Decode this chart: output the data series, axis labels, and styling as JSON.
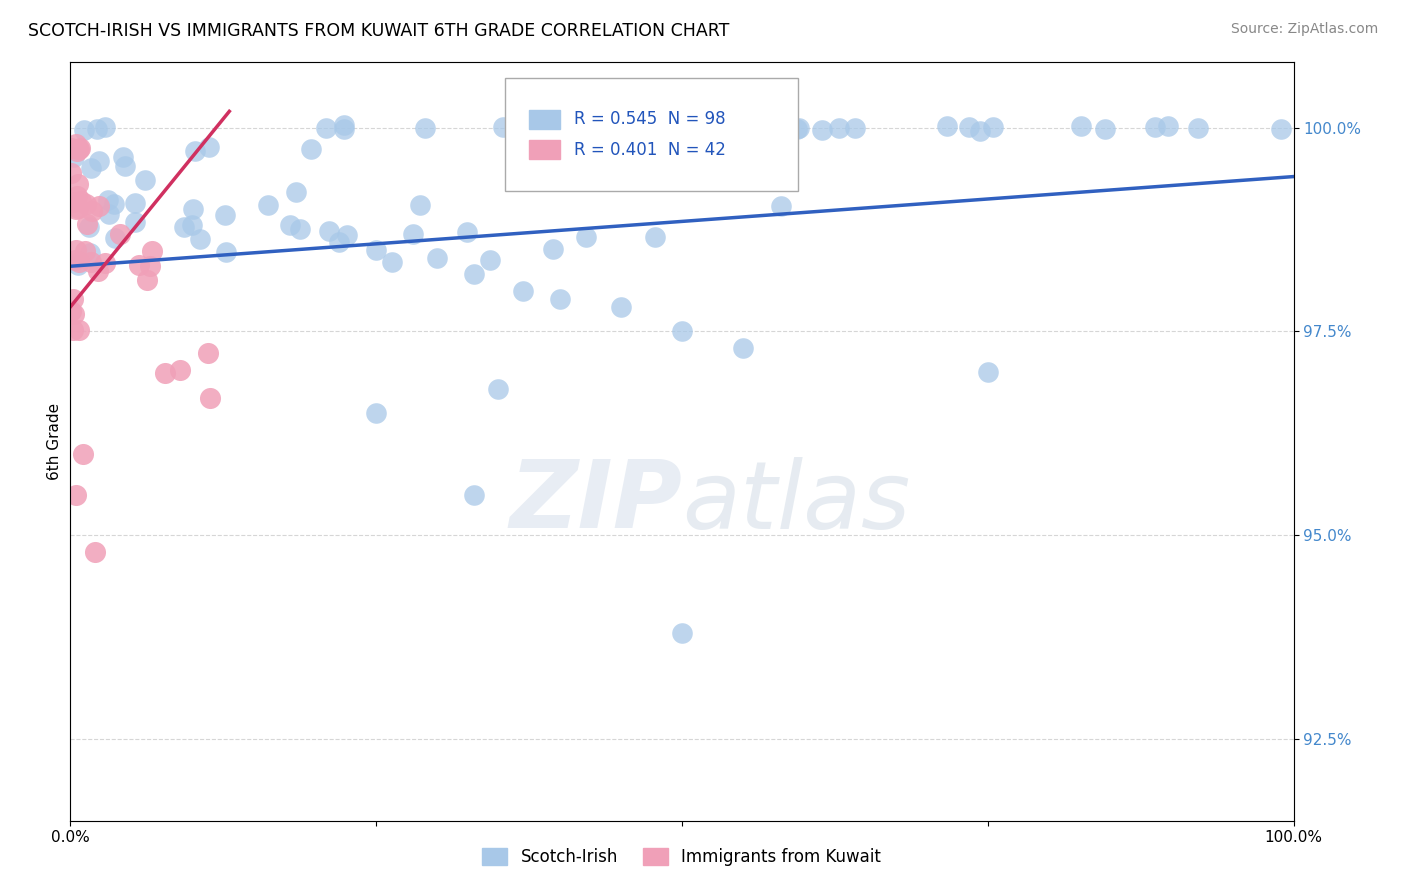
{
  "title": "SCOTCH-IRISH VS IMMIGRANTS FROM KUWAIT 6TH GRADE CORRELATION CHART",
  "source_text": "Source: ZipAtlas.com",
  "ylabel": "6th Grade",
  "x_min": 0,
  "x_max": 100,
  "y_min": 91.5,
  "y_max": 100.8,
  "y_ticks": [
    92.5,
    95.0,
    97.5,
    100.0
  ],
  "y_tick_labels": [
    "92.5%",
    "95.0%",
    "97.5%",
    "100.0%"
  ],
  "blue_R": 0.545,
  "blue_N": 98,
  "pink_R": 0.401,
  "pink_N": 42,
  "blue_color": "#a8c8e8",
  "pink_color": "#f0a0b8",
  "blue_line_color": "#3060c0",
  "pink_line_color": "#d03060",
  "watermark": "ZIPatlas",
  "blue_line_x0": 0,
  "blue_line_x1": 100,
  "blue_line_y0": 98.3,
  "blue_line_y1": 99.4,
  "pink_line_x0": 0,
  "pink_line_x1": 13,
  "pink_line_y0": 97.8,
  "pink_line_y1": 100.2
}
